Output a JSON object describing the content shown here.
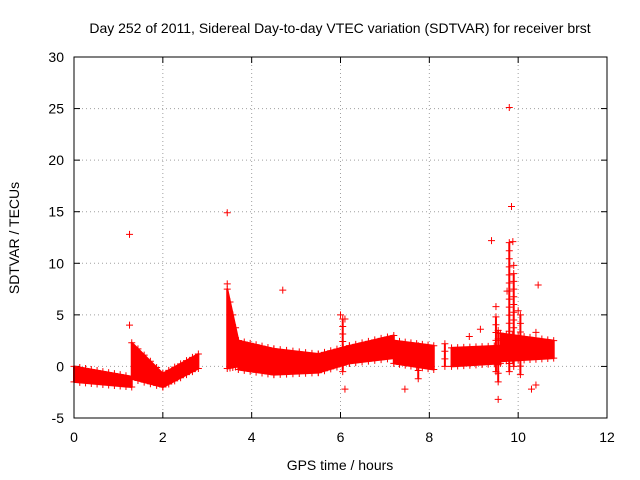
{
  "chart_data": {
    "type": "scatter",
    "title": "Day 252 of 2011, Sidereal Day-to-day VTEC variation (SDTVAR) for receiver brst",
    "xlabel": "GPS time / hours",
    "ylabel": "SDTVAR / TECUs",
    "xlim": [
      0,
      12
    ],
    "ylim": [
      -5,
      30
    ],
    "xticks": [
      0,
      2,
      4,
      6,
      8,
      10,
      12
    ],
    "yticks": [
      -5,
      0,
      5,
      10,
      15,
      20,
      25,
      30
    ],
    "grid": true,
    "marker": "+",
    "color": "#ff0000",
    "bands": [
      {
        "segment": "0.0-1.3 h",
        "x_start": 0.0,
        "x_end": 1.3,
        "y_low_start": -1.5,
        "y_low_end": -2.0,
        "y_high_start": 0.0,
        "y_high_end": -1.0
      },
      {
        "segment": "1.3-2.0 h",
        "x_start": 1.3,
        "x_end": 2.0,
        "y_low_start": -1.2,
        "y_low_end": -2.0,
        "y_high_start": 2.3,
        "y_high_end": -0.7
      },
      {
        "segment": "2.0-2.8 h",
        "x_start": 2.0,
        "x_end": 2.8,
        "y_low_start": -2.0,
        "y_low_end": -0.2,
        "y_high_start": -0.7,
        "y_high_end": 1.2
      },
      {
        "segment": "3.45-3.7 h",
        "x_start": 3.45,
        "x_end": 3.7,
        "y_low_start": -0.2,
        "y_low_end": 0.0,
        "y_high_start": 7.5,
        "y_high_end": 2.5
      },
      {
        "segment": "3.7-4.5 h",
        "x_start": 3.7,
        "x_end": 4.5,
        "y_low_start": -0.3,
        "y_low_end": -0.8,
        "y_high_start": 2.5,
        "y_high_end": 1.7
      },
      {
        "segment": "4.5-5.5 h",
        "x_start": 4.5,
        "x_end": 5.5,
        "y_low_start": -0.8,
        "y_low_end": -0.6,
        "y_high_start": 1.7,
        "y_high_end": 1.2
      },
      {
        "segment": "5.5-6.2 h",
        "x_start": 5.5,
        "x_end": 6.2,
        "y_low_start": -0.6,
        "y_low_end": 0.3,
        "y_high_start": 1.2,
        "y_high_end": 2.0
      },
      {
        "segment": "6.2-7.2 h",
        "x_start": 6.2,
        "x_end": 7.2,
        "y_low_start": 0.3,
        "y_low_end": 0.8,
        "y_high_start": 2.0,
        "y_high_end": 3.0
      },
      {
        "segment": "7.2-8.1 h",
        "x_start": 7.2,
        "x_end": 8.1,
        "y_low_start": 0.3,
        "y_low_end": -0.3,
        "y_high_start": 2.5,
        "y_high_end": 2.0
      },
      {
        "segment": "8.5-9.6 h",
        "x_start": 8.5,
        "x_end": 9.6,
        "y_low_start": 0.0,
        "y_low_end": 0.3,
        "y_high_start": 1.8,
        "y_high_end": 2.0
      },
      {
        "segment": "9.6-10.8 h",
        "x_start": 9.6,
        "x_end": 10.8,
        "y_low_start": 0.5,
        "y_low_end": 0.8,
        "y_high_start": 3.2,
        "y_high_end": 2.5
      }
    ],
    "outliers": [
      {
        "x": 1.25,
        "y": 12.8
      },
      {
        "x": 1.25,
        "y": 4.0
      },
      {
        "x": 3.45,
        "y": 14.9
      },
      {
        "x": 3.45,
        "y": 8.0
      },
      {
        "x": 4.7,
        "y": 7.4
      },
      {
        "x": 6.0,
        "y": 5.0
      },
      {
        "x": 6.1,
        "y": 4.6
      },
      {
        "x": 6.1,
        "y": -2.2
      },
      {
        "x": 7.45,
        "y": -2.2
      },
      {
        "x": 8.9,
        "y": 2.9
      },
      {
        "x": 9.15,
        "y": 3.6
      },
      {
        "x": 9.4,
        "y": 12.2
      },
      {
        "x": 9.5,
        "y": 5.8
      },
      {
        "x": 9.55,
        "y": -3.2
      },
      {
        "x": 9.75,
        "y": 7.3
      },
      {
        "x": 9.8,
        "y": 25.1
      },
      {
        "x": 9.85,
        "y": 15.5
      },
      {
        "x": 9.88,
        "y": 12.1
      },
      {
        "x": 9.9,
        "y": 9.8
      },
      {
        "x": 10.0,
        "y": 5.4
      },
      {
        "x": 10.3,
        "y": -2.2
      },
      {
        "x": 10.4,
        "y": -1.8
      },
      {
        "x": 10.45,
        "y": 7.9
      },
      {
        "x": 10.4,
        "y": 3.3
      }
    ],
    "spikes": [
      {
        "x": 9.8,
        "y_low": -0.5,
        "y_high": 12.0
      },
      {
        "x": 9.9,
        "y_low": 0.0,
        "y_high": 9.0
      },
      {
        "x": 10.05,
        "y_low": -0.8,
        "y_high": 5.0
      },
      {
        "x": 9.5,
        "y_low": -0.5,
        "y_high": 4.8
      },
      {
        "x": 9.55,
        "y_low": -1.5,
        "y_high": 3.5
      },
      {
        "x": 8.35,
        "y_low": 0.0,
        "y_high": 2.2
      },
      {
        "x": 7.75,
        "y_low": -1.2,
        "y_high": 2.0
      },
      {
        "x": 6.05,
        "y_low": -0.5,
        "y_high": 4.6
      }
    ]
  }
}
